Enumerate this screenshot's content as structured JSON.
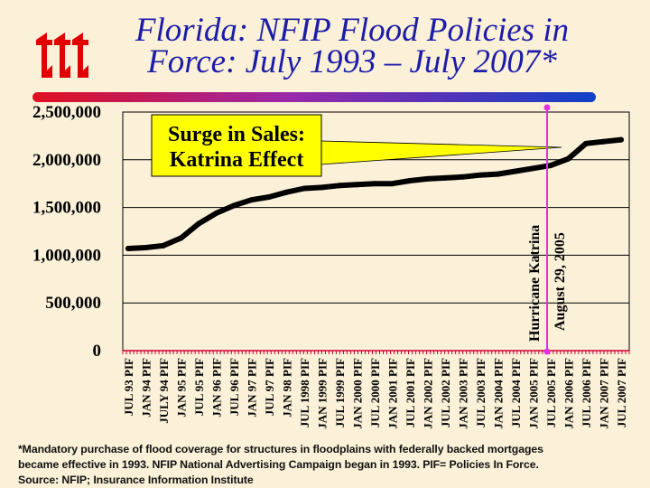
{
  "title": {
    "line1": "Florida: NFIP Flood Policies in",
    "line2": "Force: July 1993 – July 2007*"
  },
  "logo": {
    "text": "iii",
    "color": "#e00000"
  },
  "colors": {
    "background": "#fbf0d8",
    "title": "#1c1ca8",
    "line": "#000000",
    "axis": "#cc0033",
    "katrina_marker": "#dd33dd",
    "callout": "#ffff00",
    "bar_start": "#e01020",
    "bar_end": "#1040c8"
  },
  "chart_data": {
    "type": "line",
    "title": "Florida: NFIP Flood Policies in Force: July 1993 – July 2007*",
    "xlabel": "",
    "ylabel": "",
    "ylim": [
      0,
      2500000
    ],
    "yticks": [
      "0",
      "500,000",
      "1,000,000",
      "1,500,000",
      "2,000,000",
      "2,500,000"
    ],
    "ytick_values": [
      0,
      500000,
      1000000,
      1500000,
      2000000,
      2500000
    ],
    "grid": "horizontal",
    "categories": [
      "JUL 93 PIF",
      "JAN 94 PIF",
      "JULY 94 PIF",
      "JAN 95 PIF",
      "JUL 95 PIF",
      "JAN 96 PIF",
      "JUL 96 PIF",
      "JAN 97 PIF",
      "JUL 97 PIF",
      "JAN 98 PIF",
      "JUL 1998 PIF",
      "JAN 1999 PIF",
      "JUL 1999 PIF",
      "JAN 2000 PIF",
      "JUL 2000 PIF",
      "JAN 2001 PIF",
      "JUL 2001 PIF",
      "JAN 2002 PIF",
      "JUL 2002 PIF",
      "JAN 2003 PIF",
      "JUL 2003 PIF",
      "JAN 2004 PIF",
      "JUL 2004 PIF",
      "JAN 2005 PIF",
      "JUL 2005 PIF",
      "JAN 2006 PIF",
      "JUL 2006 PIF",
      "JAN 2007 PIF",
      "JUL 2007 PIF"
    ],
    "values": [
      1070000,
      1080000,
      1100000,
      1180000,
      1330000,
      1440000,
      1520000,
      1580000,
      1610000,
      1660000,
      1700000,
      1710000,
      1730000,
      1740000,
      1750000,
      1750000,
      1780000,
      1800000,
      1810000,
      1820000,
      1840000,
      1850000,
      1880000,
      1910000,
      1940000,
      2010000,
      2170000,
      2190000,
      2210000
    ],
    "annotations": {
      "callout": {
        "line1": "Surge in Sales:",
        "line2": "Katrina Effect"
      },
      "event_line1": "Hurricane Katrina",
      "event_line2": "August 29, 2005"
    }
  },
  "footnote": {
    "line1": "*Mandatory purchase of flood coverage for structures in floodplains with federally backed mortgages",
    "line2": "became effective in 1993. NFIP National Advertising Campaign began in 1993.   PIF= Policies In Force.",
    "line3": "Source: NFIP; Insurance Information Institute"
  }
}
